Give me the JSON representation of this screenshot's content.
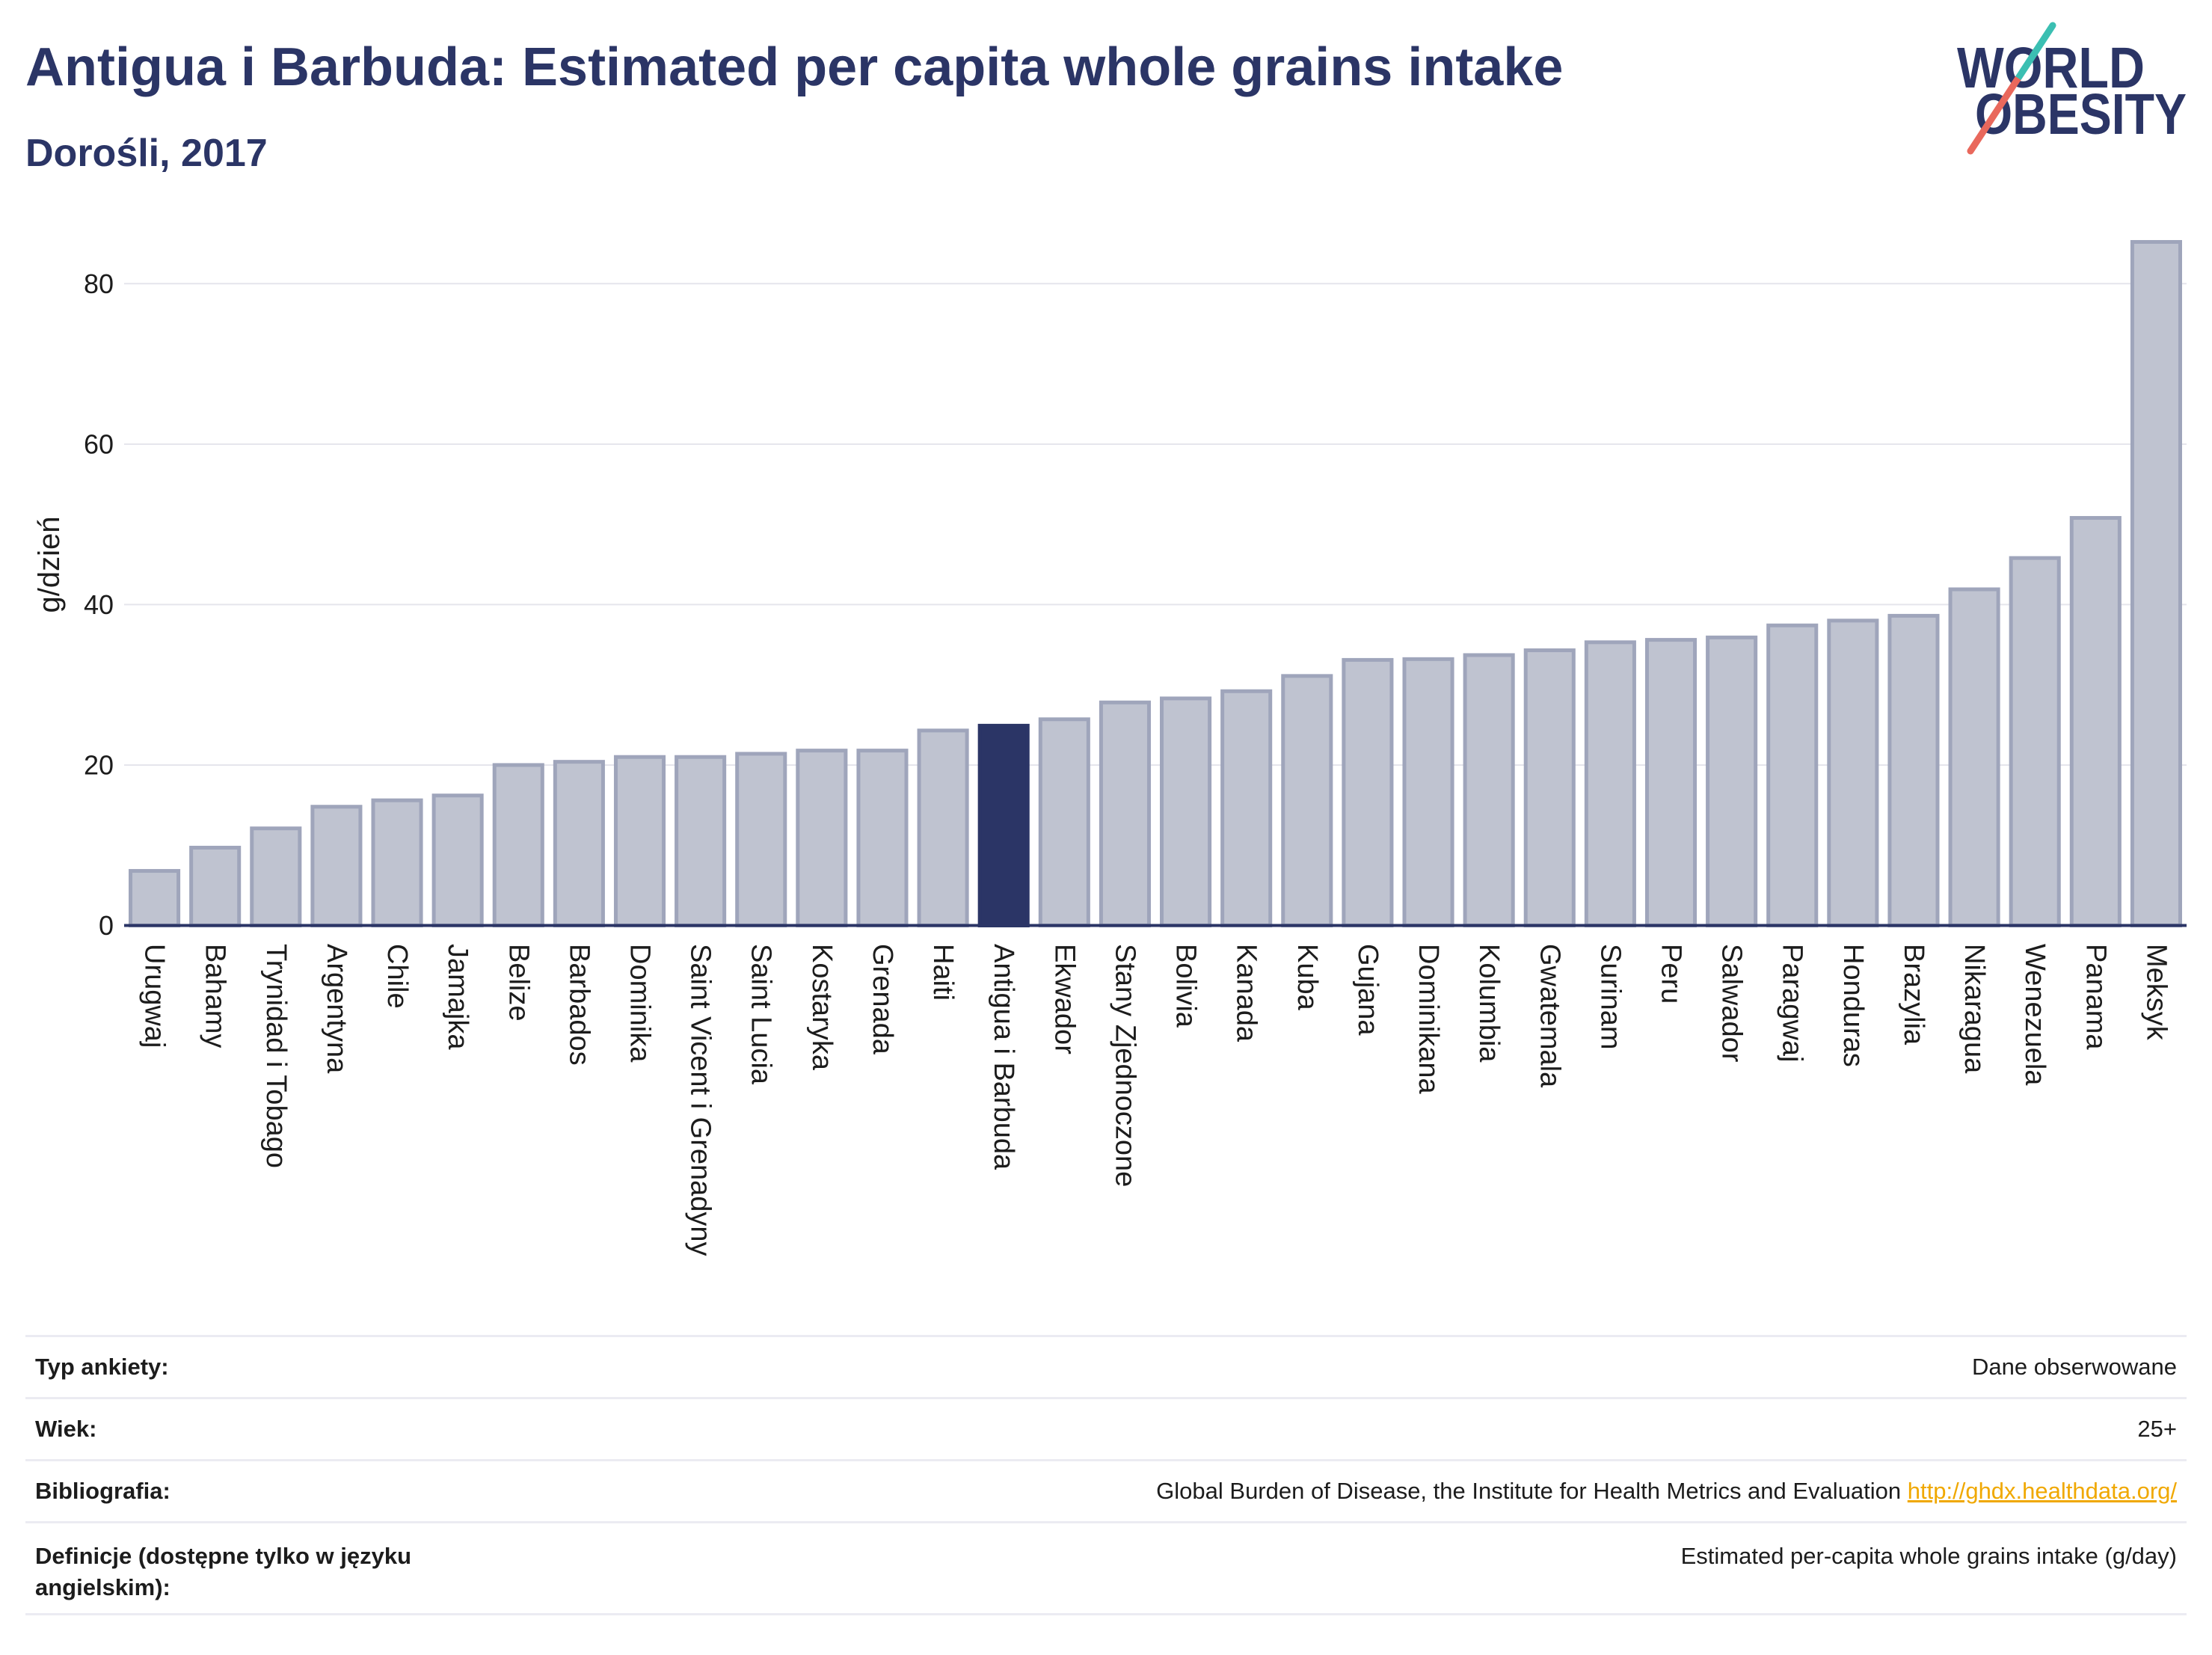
{
  "logo": {
    "line1": "WORLD",
    "line2": "OBESITY",
    "colors": {
      "text": "#2b3566",
      "slash_top": "#3bbfb2",
      "slash_bottom": "#e9685c"
    }
  },
  "chart_data": {
    "type": "bar",
    "title": "Antigua i Barbuda: Estimated per capita whole grains intake",
    "subtitle": "Dorośli, 2017",
    "xlabel": "",
    "ylabel": "g/dzień",
    "ylim": [
      0,
      90
    ],
    "yticks": [
      0,
      20,
      40,
      60,
      80
    ],
    "grid": true,
    "highlight_index": 14,
    "categories": [
      "Urugwaj",
      "Bahamy",
      "Trynidad i Tobago",
      "Argentyna",
      "Chile",
      "Jamajka",
      "Belize",
      "Barbados",
      "Dominika",
      "Saint Vicent i Grenadyny",
      "Saint Lucia",
      "Kostaryka",
      "Grenada",
      "Haiti",
      "Antigua i Barbuda",
      "Ekwador",
      "Stany Zjednoczone",
      "Bolivia",
      "Kanada",
      "Kuba",
      "Gujana",
      "Dominikana",
      "Kolumbia",
      "Gwatemala",
      "Surinam",
      "Peru",
      "Salwador",
      "Paragwaj",
      "Honduras",
      "Brazylia",
      "Nikaragua",
      "Wenezuela",
      "Panama",
      "Meksyk"
    ],
    "values": [
      6.8,
      9.7,
      12.1,
      14.8,
      15.6,
      16.2,
      20.0,
      20.4,
      21.0,
      21.0,
      21.4,
      21.8,
      21.8,
      24.3,
      24.9,
      25.7,
      27.8,
      28.3,
      29.2,
      31.1,
      33.1,
      33.2,
      33.7,
      34.3,
      35.3,
      35.6,
      35.9,
      37.4,
      38.0,
      38.6,
      41.9,
      45.8,
      50.8,
      85.2
    ],
    "colors": {
      "bar": "#bfc3d0",
      "bar_stroke": "#9fa5bb",
      "highlight": "#2b3566",
      "grid": "#e5e5ec",
      "zero_line": "#2b3566"
    }
  },
  "info_table": {
    "rows": [
      {
        "label": "Typ ankiety:",
        "value": "Dane obserwowane"
      },
      {
        "label": "Wiek:",
        "value": "25+"
      },
      {
        "label": "Bibliografia:",
        "value": "Global Burden of Disease, the Institute for Health Metrics and Evaluation",
        "link": "http://ghdx.healthdata.org/"
      },
      {
        "label": "Definicje (dostępne tylko w języku angielskim):",
        "value": "Estimated per-capita whole grains intake (g/day)"
      }
    ]
  }
}
